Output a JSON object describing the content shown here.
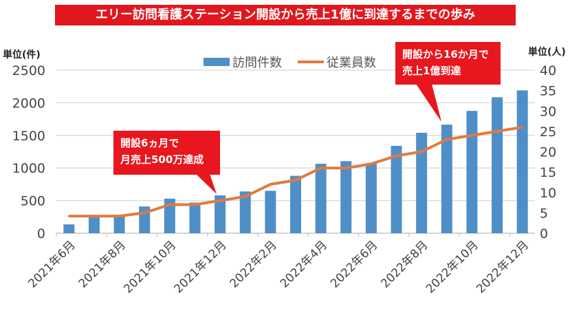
{
  "chart_data": {
    "type": "bar+line",
    "title": "エリー訪問看護ステーション開設から売上1億に到達するまでの歩み",
    "left_unit": "単位(件)",
    "right_unit": "単位(人)",
    "categories": [
      "2021年6月",
      "2021年7月",
      "2021年8月",
      "2021年9月",
      "2021年10月",
      "2021年11月",
      "2021年12月",
      "2022年1月",
      "2022年2月",
      "2022年3月",
      "2022年4月",
      "2022年5月",
      "2022年6月",
      "2022年7月",
      "2022年8月",
      "2022年9月",
      "2022年10月",
      "2022年11月",
      "2022年12月"
    ],
    "tick_labels_shown": [
      "2021年6月",
      "2021年8月",
      "2021年10月",
      "2021年12月",
      "2022年2月",
      "2022年4月",
      "2022年6月",
      "2022年8月",
      "2022年10月",
      "2022年12月"
    ],
    "series": [
      {
        "name": "訪問件数",
        "type": "bar",
        "axis": "left",
        "color": "#4f8fc8",
        "values": [
          135,
          260,
          270,
          410,
          530,
          470,
          580,
          640,
          650,
          880,
          1065,
          1105,
          1075,
          1340,
          1540,
          1665,
          1875,
          2085,
          2190
        ]
      },
      {
        "name": "従業員数",
        "type": "line",
        "axis": "right",
        "color": "#e07b40",
        "values": [
          4.2,
          4.2,
          4.2,
          5,
          7,
          7,
          8,
          9,
          12,
          13,
          16,
          16,
          17,
          19,
          20,
          23,
          24,
          25,
          26
        ]
      }
    ],
    "ylim_left": [
      0,
      2500
    ],
    "yticks_left": [
      0,
      500,
      1000,
      1500,
      2000,
      2500
    ],
    "ylim_right": [
      0,
      40
    ],
    "yticks_right": [
      0,
      5,
      10,
      15,
      20,
      25,
      30,
      35,
      40
    ],
    "grid": true,
    "legend_placement": "top",
    "annotations": [
      {
        "lines": [
          "開設6ヵ月で",
          "月売上500万達成"
        ],
        "category": "2021年12月"
      },
      {
        "lines": [
          "開設から16か月で",
          "売上1億到達"
        ],
        "category": "2022年9月"
      }
    ]
  }
}
